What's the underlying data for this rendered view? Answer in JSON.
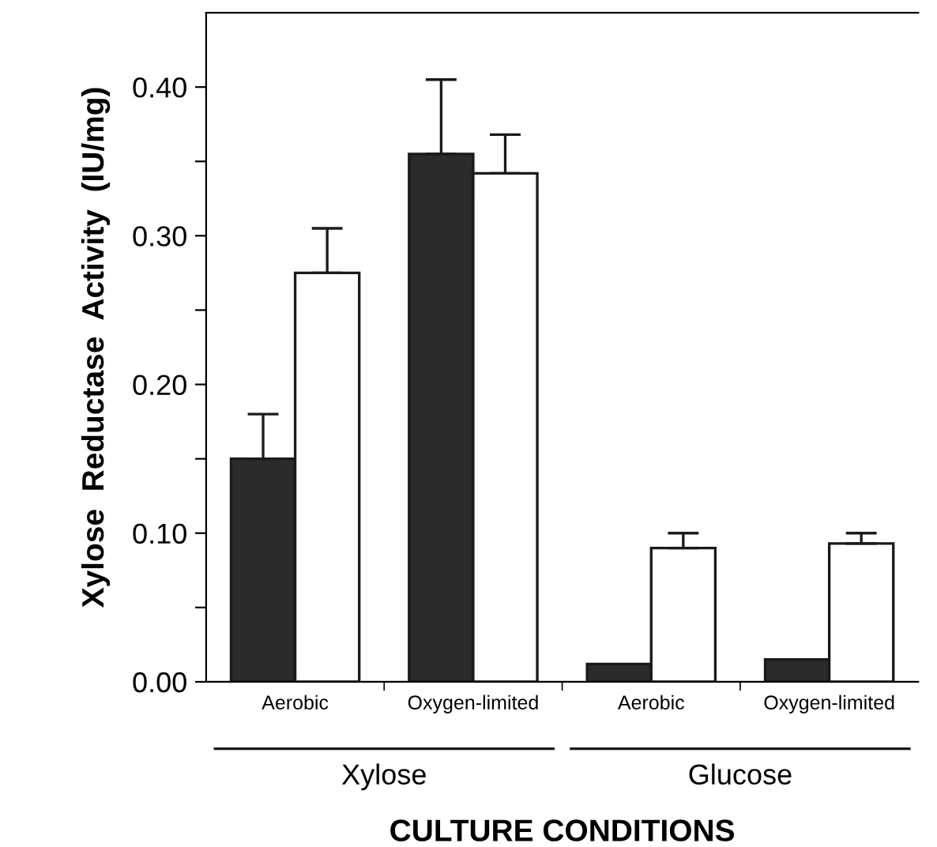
{
  "chart_data": {
    "type": "bar",
    "xlabel": "CULTURE CONDITIONS",
    "ylabel": "Xylose  Reductase  Activity  (IU/mg)",
    "categories": [
      "Aerobic",
      "Oxygen-limited",
      "Aerobic",
      "Oxygen-limited"
    ],
    "series": [
      {
        "color": "#2b2b2b",
        "values": [
          0.15,
          0.355,
          0.012,
          0.015
        ],
        "errors": [
          [
            0.15,
            0.18
          ],
          [
            0.355,
            0.405
          ],
          null,
          null
        ]
      },
      {
        "color": "#ffffff",
        "values": [
          0.275,
          0.342,
          0.09,
          0.093
        ],
        "errors": [
          [
            0.275,
            0.305
          ],
          [
            0.342,
            0.368
          ],
          [
            0.09,
            0.1
          ],
          [
            0.093,
            0.1
          ]
        ]
      }
    ],
    "annotations": [
      "Xylose",
      "Glucose"
    ],
    "ylim": [
      0,
      0.45
    ],
    "yticks": [
      {
        "value": 0.0,
        "label": "0.00"
      },
      {
        "value": 0.05,
        "label": null
      },
      {
        "value": 0.1,
        "label": "0.10"
      },
      {
        "value": 0.15,
        "label": null
      },
      {
        "value": 0.2,
        "label": "0.20"
      },
      {
        "value": 0.25,
        "label": null
      },
      {
        "value": 0.3,
        "label": "0.30"
      },
      {
        "value": 0.35,
        "label": null
      },
      {
        "value": 0.4,
        "label": "0.40"
      }
    ],
    "grid": false,
    "legend": false
  }
}
